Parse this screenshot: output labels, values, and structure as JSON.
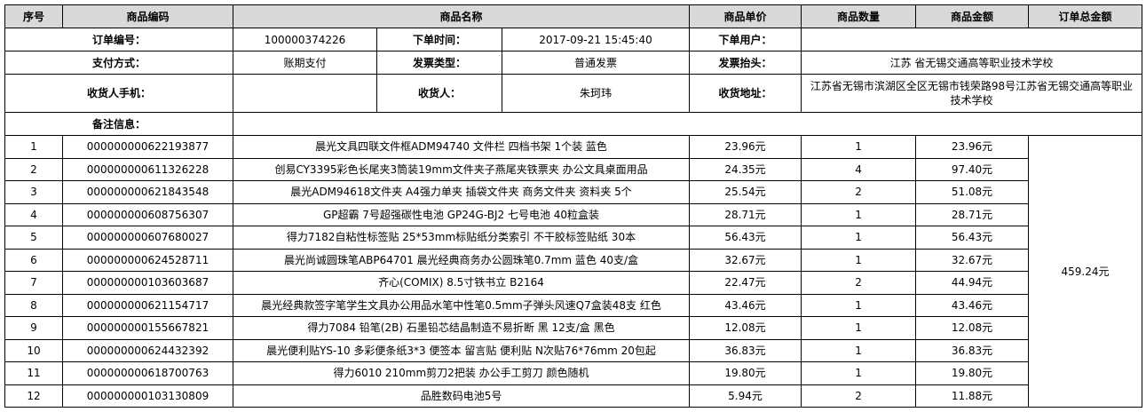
{
  "order_info": {
    "order_no_label": "订单编号：",
    "order_no": "100000374226",
    "order_time_label": "下单时间：",
    "order_time": "2017-09-21 15:45:40",
    "order_user_label": "下单用户：",
    "order_user": "",
    "payment_label": "支付方式：",
    "payment": "账期支付",
    "invoice_type_label": "发票类型：",
    "invoice_type": "普通发票",
    "invoice_title_label": "发票抬头：",
    "invoice_title": "江苏 省无锡交通高等职业技术学校",
    "phone_label": "收货人手机：",
    "phone": "",
    "receiver_label": "收货人：",
    "receiver": "朱珂玮",
    "address_label": "收货地址：",
    "address": "江苏省无锡市滨湖区全区无锡市钱荣路98号江苏省无锡交通高等职业技术学校",
    "remark_label": "备注信息：",
    "remark": ""
  },
  "columns": [
    "序号",
    "商品编码",
    "商品名称",
    "商品单价",
    "商品数量",
    "商品金额",
    "订单总金额"
  ],
  "order_total": "459.24元",
  "items": [
    {
      "no": "1",
      "code": "000000000622193877",
      "name": "晨光文具四联文件框ADM94740 文件栏 四档书架 1个装 蓝色",
      "price": "23.96元",
      "qty": "1",
      "amount": "23.96元"
    },
    {
      "no": "2",
      "code": "000000000611326228",
      "name": "创易CY3395彩色长尾夹3筒装19mm文件夹子燕尾夹铁票夹 办公文具桌面用品",
      "price": "24.35元",
      "qty": "4",
      "amount": "97.40元"
    },
    {
      "no": "3",
      "code": "000000000621843548",
      "name": "晨光ADM94618文件夹 A4强力单夹 插袋文件夹 商务文件夹 资料夹 5个",
      "price": "25.54元",
      "qty": "2",
      "amount": "51.08元"
    },
    {
      "no": "4",
      "code": "000000000608756307",
      "name": "GP超霸 7号超强碳性电池 GP24G-BJ2 七号电池 40粒盒装",
      "price": "28.71元",
      "qty": "1",
      "amount": "28.71元"
    },
    {
      "no": "5",
      "code": "000000000607680027",
      "name": "得力7182自粘性标签贴 25*53mm标贴纸分类索引 不干胶标签贴纸 30本",
      "price": "56.43元",
      "qty": "1",
      "amount": "56.43元"
    },
    {
      "no": "6",
      "code": "000000000624528711",
      "name": "晨光尚诚圆珠笔ABP64701 晨光经典商务办公圆珠笔0.7mm 蓝色 40支/盒",
      "price": "32.67元",
      "qty": "1",
      "amount": "32.67元"
    },
    {
      "no": "7",
      "code": "000000000103603687",
      "name": "齐心(COMIX) 8.5寸铁书立 B2164",
      "price": "22.47元",
      "qty": "2",
      "amount": "44.94元"
    },
    {
      "no": "8",
      "code": "000000000621154717",
      "name": "晨光经典款签字笔学生文具办公用品水笔中性笔0.5mm子弹头风速Q7盒装48支 红色",
      "price": "43.46元",
      "qty": "1",
      "amount": "43.46元"
    },
    {
      "no": "9",
      "code": "000000000155667821",
      "name": "得力7084 铅笔(2B) 石墨铅芯结晶制造不易折断 黑 12支/盒 黑色",
      "price": "12.08元",
      "qty": "1",
      "amount": "12.08元"
    },
    {
      "no": "10",
      "code": "000000000624432392",
      "name": "晨光便利贴YS-10 多彩便条纸3*3 便签本 留言贴 便利贴 N次贴76*76mm 20包起",
      "price": "36.83元",
      "qty": "1",
      "amount": "36.83元"
    },
    {
      "no": "11",
      "code": "000000000618700763",
      "name": "得力6010 210mm剪刀2把装 办公手工剪刀 颜色随机",
      "price": "19.80元",
      "qty": "1",
      "amount": "19.80元"
    },
    {
      "no": "12",
      "code": "000000000103130809",
      "name": "品胜数码电池5号",
      "price": "5.94元",
      "qty": "2",
      "amount": "11.88元"
    }
  ]
}
